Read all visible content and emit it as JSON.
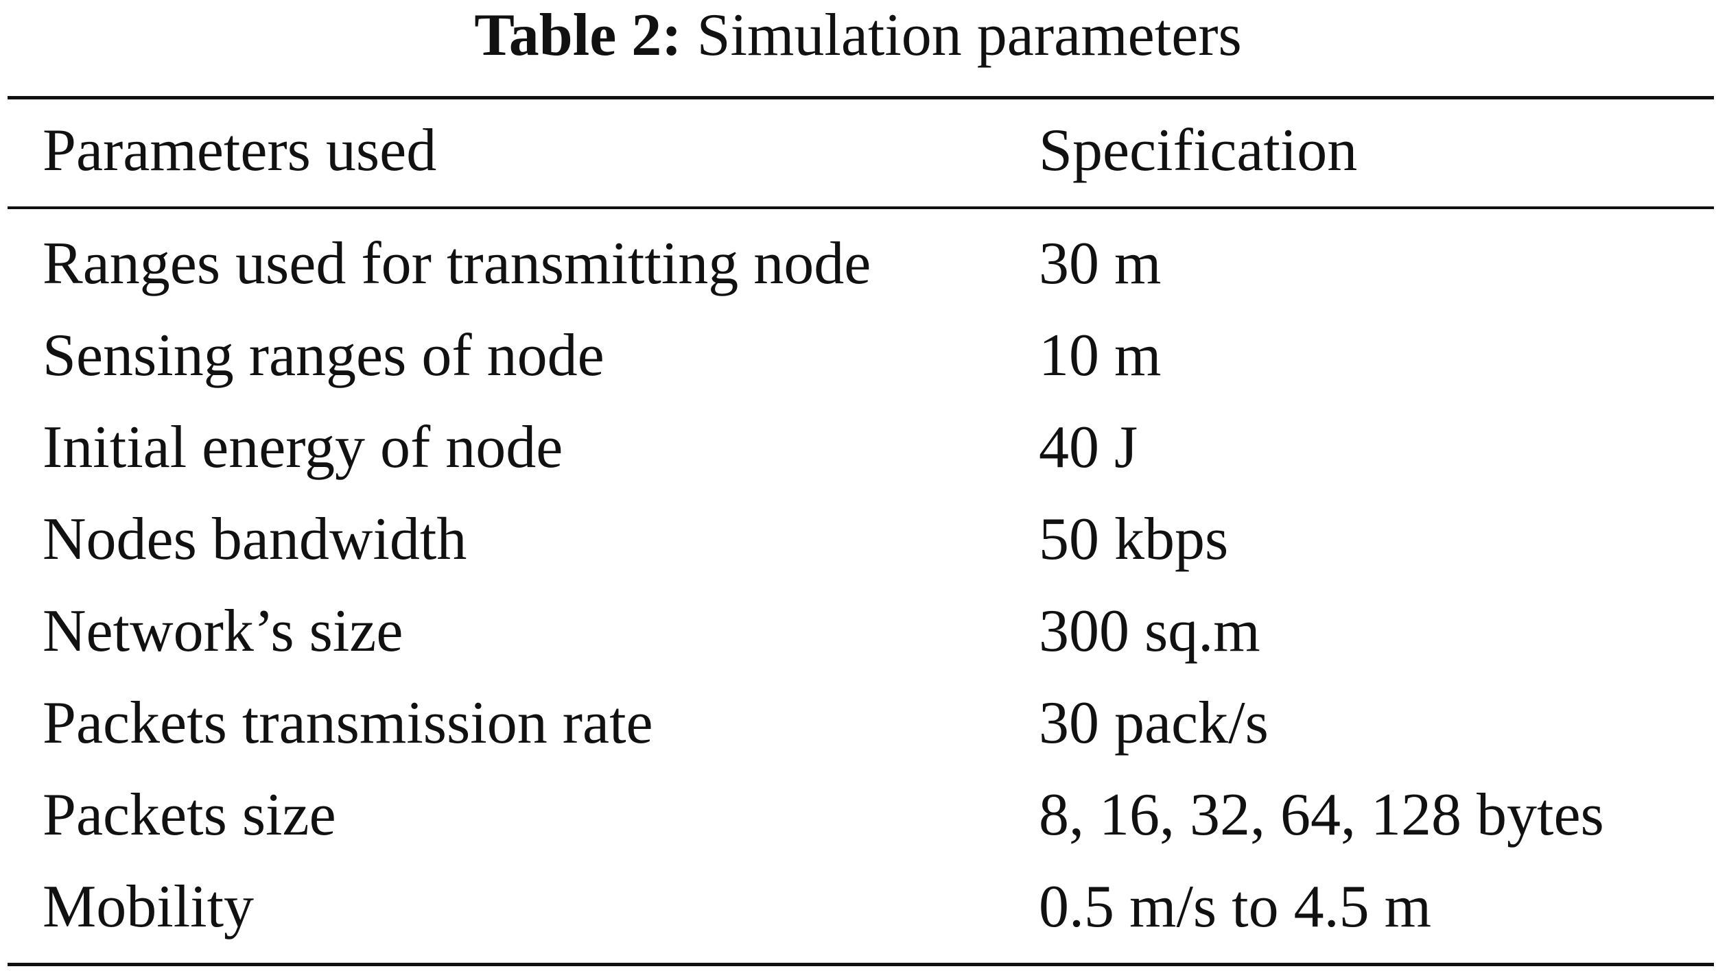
{
  "caption": {
    "label": "Table 2:",
    "title": "Simulation parameters"
  },
  "table": {
    "headers": [
      "Parameters used",
      "Specification"
    ],
    "rows": [
      [
        "Ranges used for transmitting node",
        "30 m"
      ],
      [
        "Sensing ranges of node",
        "10 m"
      ],
      [
        "Initial energy of node",
        "40 J"
      ],
      [
        "Nodes bandwidth",
        "50 kbps"
      ],
      [
        "Network’s size",
        "300 sq.m"
      ],
      [
        "Packets transmission rate",
        "30 pack/s"
      ],
      [
        "Packets size",
        "8, 16, 32, 64, 128 bytes"
      ],
      [
        "Mobility",
        "0.5 m/s to 4.5 m"
      ]
    ]
  }
}
